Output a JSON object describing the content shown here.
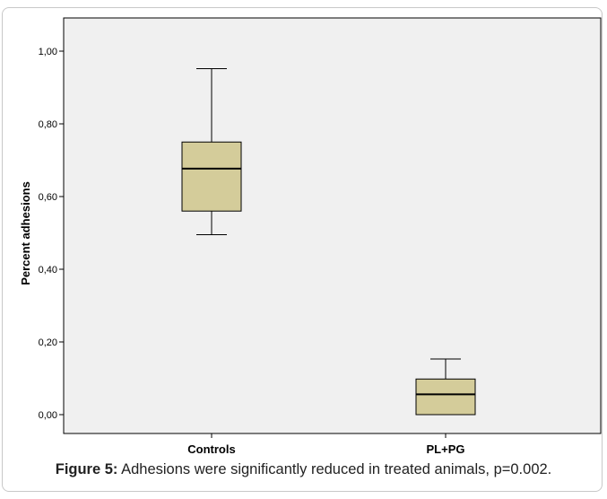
{
  "chart_data": {
    "type": "boxplot",
    "ylabel": "Percent adhesions",
    "xlabel": "",
    "ylim": [
      0,
      1.0
    ],
    "yticks": [
      "0,00",
      "0,20",
      "0,40",
      "0,60",
      "0,80",
      "1,00"
    ],
    "categories": [
      "Controls",
      "PL+PG"
    ],
    "boxes": [
      {
        "category": "Controls",
        "min": 0.495,
        "q1": 0.56,
        "median": 0.677,
        "q3": 0.75,
        "max": 0.952
      },
      {
        "category": "PL+PG",
        "min": 0.0,
        "q1": 0.0,
        "median": 0.056,
        "q3": 0.098,
        "max": 0.153
      }
    ],
    "grid": false,
    "legend": "none"
  },
  "colors": {
    "plot_background": "#f0f0f0",
    "box_fill": "#d4cc9a",
    "box_stroke": "#000000"
  },
  "caption": {
    "lead": "Figure 5:",
    "text": " Adhesions were significantly reduced in treated animals, p=0.002."
  }
}
